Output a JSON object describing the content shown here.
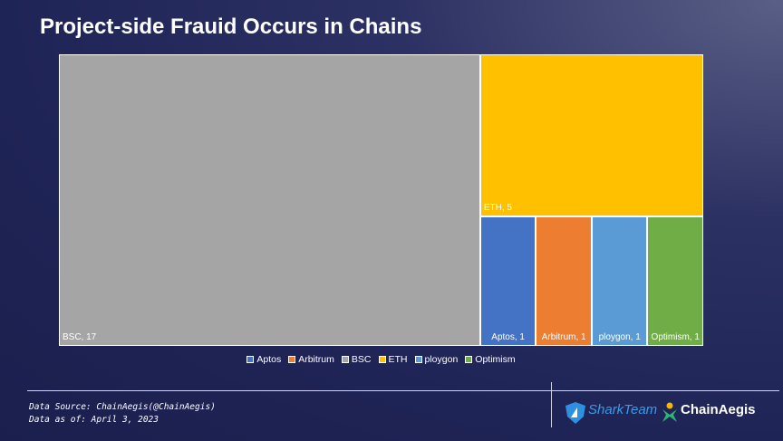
{
  "chart_data": {
    "type": "treemap",
    "title": "Project-side Frauid Occurs in Chains",
    "categories": [
      "Aptos",
      "Arbitrum",
      "BSC",
      "ETH",
      "ploygon",
      "Optimism"
    ],
    "values": [
      1,
      1,
      17,
      5,
      1,
      1
    ],
    "value_labels": [
      "Aptos, 1",
      "Arbitrum, 1",
      "BSC, 17",
      "ETH, 5",
      "ploygon, 1",
      "Optimism, 1"
    ],
    "colors": [
      "#4472c4",
      "#ed7d31",
      "#a5a5a5",
      "#ffc000",
      "#5b9bd5",
      "#70ad47"
    ],
    "legend": "bottom"
  },
  "footer": {
    "source": "Data Source: ChainAegis(@ChainAegis)",
    "date": "Data as of: April 3, 2023",
    "logos": [
      "SharkTeam",
      "ChainAegis"
    ]
  }
}
